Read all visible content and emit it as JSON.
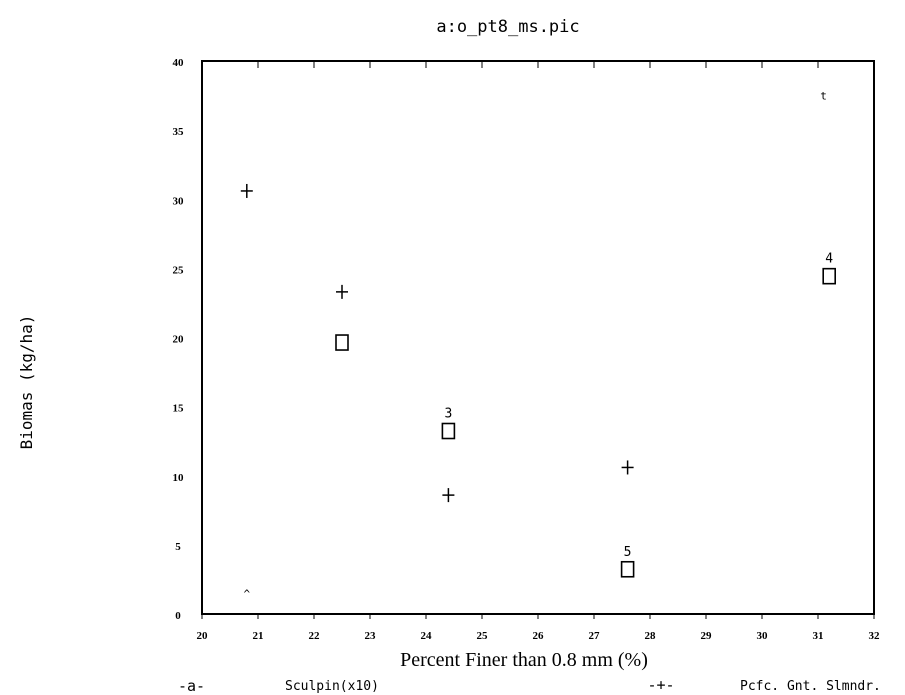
{
  "chart_data": {
    "type": "scatter",
    "title": "a:o_pt8_ms.pic",
    "xlabel": "Percent Finer than 0.8 mm (%)",
    "ylabel": "Biomas (kg/ha)",
    "xlim": [
      20,
      32
    ],
    "ylim": [
      0,
      40
    ],
    "x_ticks": [
      "20",
      "21",
      "22",
      "23",
      "24",
      "25",
      "26",
      "27",
      "28",
      "29",
      "30",
      "31",
      "32"
    ],
    "y_ticks": [
      "0",
      "5",
      "10",
      "15",
      "20",
      "25",
      "30",
      "35",
      "40"
    ],
    "series": [
      {
        "name": "Sculpin(x10)",
        "marker": "square",
        "points": [
          {
            "x": 20.8,
            "y": 1.5,
            "label": "^"
          },
          {
            "x": 22.5,
            "y": 19.6,
            "label": ""
          },
          {
            "x": 24.4,
            "y": 13.2,
            "label": "3"
          },
          {
            "x": 27.6,
            "y": 3.2,
            "label": "5"
          },
          {
            "x": 31.2,
            "y": 24.4,
            "label": "4"
          },
          {
            "x": 31.1,
            "y": 37.5,
            "label": "t"
          }
        ]
      },
      {
        "name": "Pcfc. Gnt. Slmndr.",
        "marker": "plus",
        "points": [
          {
            "x": 20.8,
            "y": 30.6
          },
          {
            "x": 22.5,
            "y": 23.3
          },
          {
            "x": 24.4,
            "y": 8.6
          },
          {
            "x": 27.6,
            "y": 10.6
          }
        ]
      }
    ],
    "legend": {
      "position": "bottom",
      "items": [
        {
          "symbol": "-a-",
          "label": "Sculpin(x10)"
        },
        {
          "symbol": "-+-",
          "label": "Pcfc. Gnt. Slmndr."
        }
      ]
    },
    "grid": false
  }
}
